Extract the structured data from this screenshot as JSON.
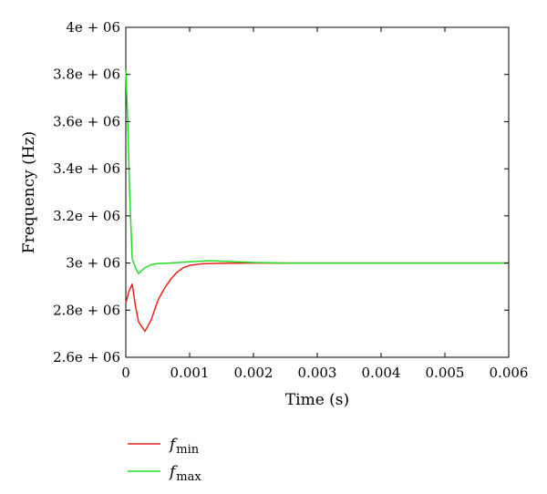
{
  "chart_data": {
    "type": "line",
    "xlabel": "Time (s)",
    "ylabel": "Frequency (Hz)",
    "xlim": [
      0,
      0.006
    ],
    "ylim": [
      2600000,
      4000000
    ],
    "x_ticks": [
      0,
      0.001,
      0.002,
      0.003,
      0.004,
      0.005,
      0.006
    ],
    "x_tick_labels": [
      "0",
      "0.001",
      "0.002",
      "0.003",
      "0.004",
      "0.005",
      "0.006"
    ],
    "y_ticks": [
      2600000,
      2800000,
      3000000,
      3200000,
      3400000,
      3600000,
      3800000,
      4000000
    ],
    "y_tick_labels": [
      "2.6e + 06",
      "2.8e + 06",
      "3e + 06",
      "3.2e + 06",
      "3.4e + 06",
      "3.6e + 06",
      "3.8e + 06",
      "4e + 06"
    ],
    "grid": false,
    "legend_position": "bottom-left, below plot",
    "series": [
      {
        "name": "f_min",
        "label_main": "f",
        "label_sub": "min",
        "color": "#e8201c",
        "x": [
          0,
          5e-05,
          0.0001,
          0.00015,
          0.0002,
          0.0003,
          0.0004,
          0.0005,
          0.0006,
          0.0007,
          0.0008,
          0.0009,
          0.001,
          0.0012,
          0.0015,
          0.002,
          0.003,
          0.004,
          0.005,
          0.006
        ],
        "y": [
          2830000,
          2880000,
          2910000,
          2820000,
          2750000,
          2710000,
          2760000,
          2840000,
          2890000,
          2930000,
          2960000,
          2980000,
          2990000,
          2997000,
          2999000,
          3000000,
          3000000,
          3000000,
          3000000,
          3000000
        ]
      },
      {
        "name": "f_max",
        "label_main": "f",
        "label_sub": "max",
        "color": "#22dd22",
        "x": [
          0,
          3e-05,
          6e-05,
          0.0001,
          0.00015,
          0.0002,
          0.0003,
          0.0004,
          0.0005,
          0.0007,
          0.001,
          0.0013,
          0.0016,
          0.002,
          0.0025,
          0.003,
          0.004,
          0.005,
          0.006
        ],
        "y": [
          3820000,
          3600000,
          3300000,
          3020000,
          2980000,
          2955000,
          2980000,
          2993000,
          2998000,
          3000000,
          3005000,
          3010000,
          3007000,
          3002000,
          3000000,
          3000000,
          3000000,
          3000000,
          3000000
        ]
      }
    ]
  }
}
